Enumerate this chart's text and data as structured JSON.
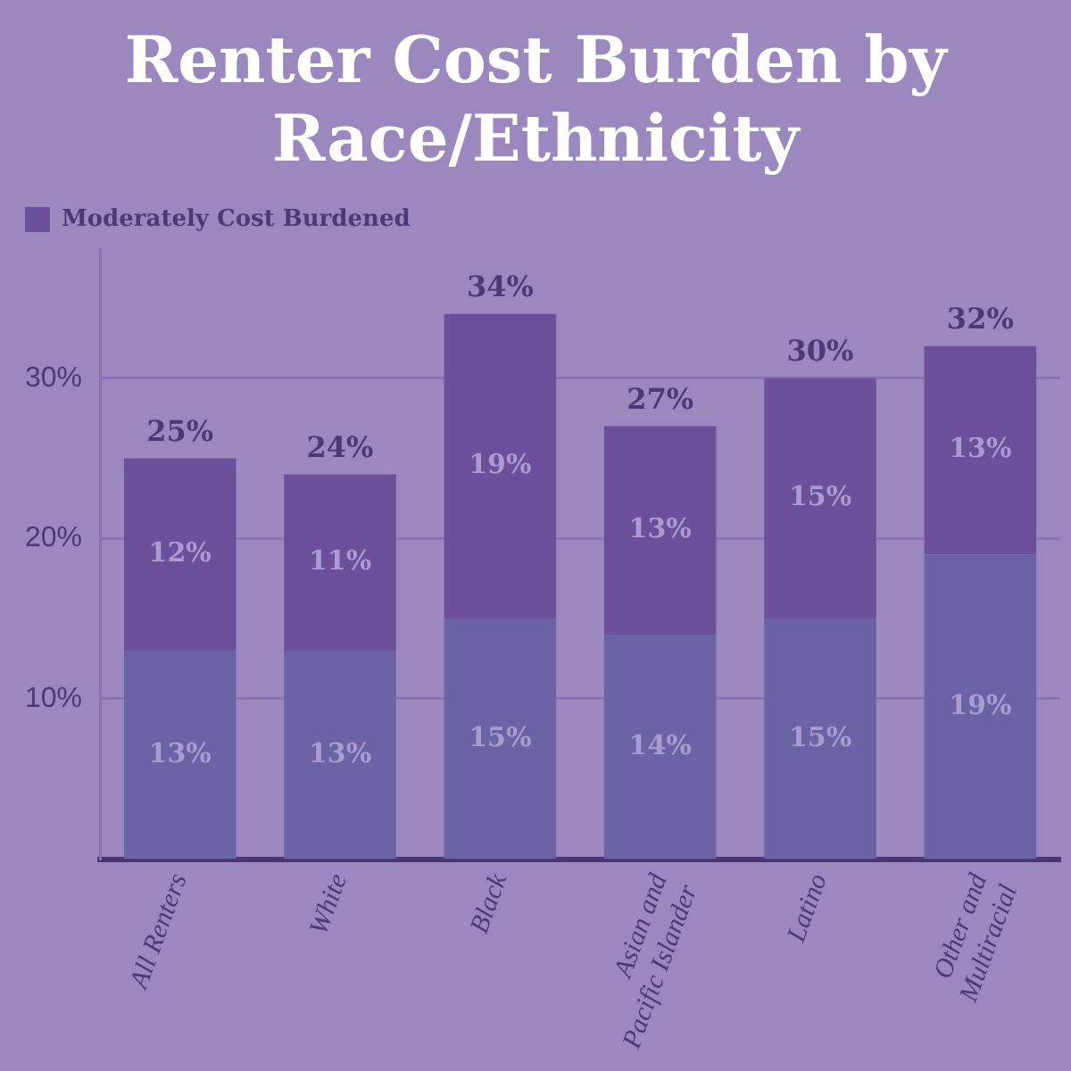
{
  "chart_data": {
    "type": "bar",
    "title": "Renter Cost Burden by Race/Ethnicity",
    "categories": [
      "All Renters",
      "White",
      "Black",
      "Asian and Pacific Islander",
      "Latino",
      "Other and Multiracial"
    ],
    "series": [
      {
        "color": "#6a64a6",
        "values": [
          13,
          13,
          15,
          14,
          15,
          19
        ],
        "value_labels": [
          "13%",
          "13%",
          "15%",
          "14%",
          "15%",
          "19%"
        ]
      },
      {
        "name": "Moderately Cost Burdened",
        "color": "#6d509b",
        "values": [
          12,
          11,
          19,
          13,
          15,
          13
        ],
        "value_labels": [
          "12%",
          "11%",
          "19%",
          "13%",
          "15%",
          "13%"
        ]
      }
    ],
    "stacked": true,
    "totals": [
      "25%",
      "24%",
      "34%",
      "27%",
      "30%",
      "32%"
    ],
    "ylim": [
      0,
      38
    ],
    "yticks": [
      {
        "value": 10,
        "label": "10%"
      },
      {
        "value": 20,
        "label": "20%"
      },
      {
        "value": 30,
        "label": "30%"
      }
    ],
    "grid": "y",
    "legend": "top left"
  }
}
